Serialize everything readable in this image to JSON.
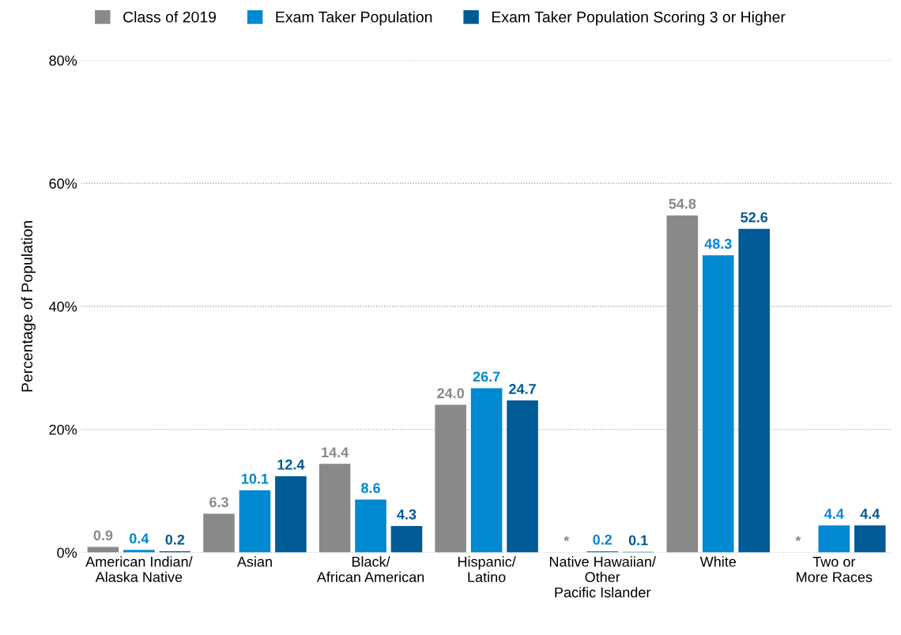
{
  "chart_data": {
    "type": "bar",
    "ylabel": "Percentage of Population",
    "categories": [
      "American Indian/\nAlaska Native",
      "Asian",
      "Black/\nAfrican American",
      "Hispanic/\nLatino",
      "Native Hawaiian/\nOther\nPacific Islander",
      "White",
      "Two or\nMore Races"
    ],
    "series": [
      {
        "name": "Class of 2019",
        "color": "#898989",
        "values": [
          0.9,
          6.3,
          14.4,
          24.0,
          null,
          54.8,
          null
        ],
        "value_labels": [
          "0.9",
          "6.3",
          "14.4",
          "24.0",
          "*",
          "54.8",
          "*"
        ]
      },
      {
        "name": "Exam Taker Population",
        "color": "#0088d1",
        "values": [
          0.4,
          10.1,
          8.6,
          26.7,
          0.2,
          48.3,
          4.4
        ],
        "value_labels": [
          "0.4",
          "10.1",
          "8.6",
          "26.7",
          "0.2",
          "48.3",
          "4.4"
        ]
      },
      {
        "name": "Exam Taker Population Scoring 3 or Higher",
        "color": "#005a96",
        "values": [
          0.2,
          12.4,
          4.3,
          24.7,
          0.1,
          52.6,
          4.4
        ],
        "value_labels": [
          "0.2",
          "12.4",
          "4.3",
          "24.7",
          "0.1",
          "52.6",
          "4.4"
        ]
      }
    ],
    "ylim": [
      0,
      80
    ],
    "yticks": [
      {
        "value": 0,
        "label": "0%"
      },
      {
        "value": 20,
        "label": "20%"
      },
      {
        "value": 40,
        "label": "40%"
      },
      {
        "value": 60,
        "label": "60%"
      },
      {
        "value": 80,
        "label": "80%"
      }
    ],
    "grid": "y",
    "legend": "top left"
  }
}
